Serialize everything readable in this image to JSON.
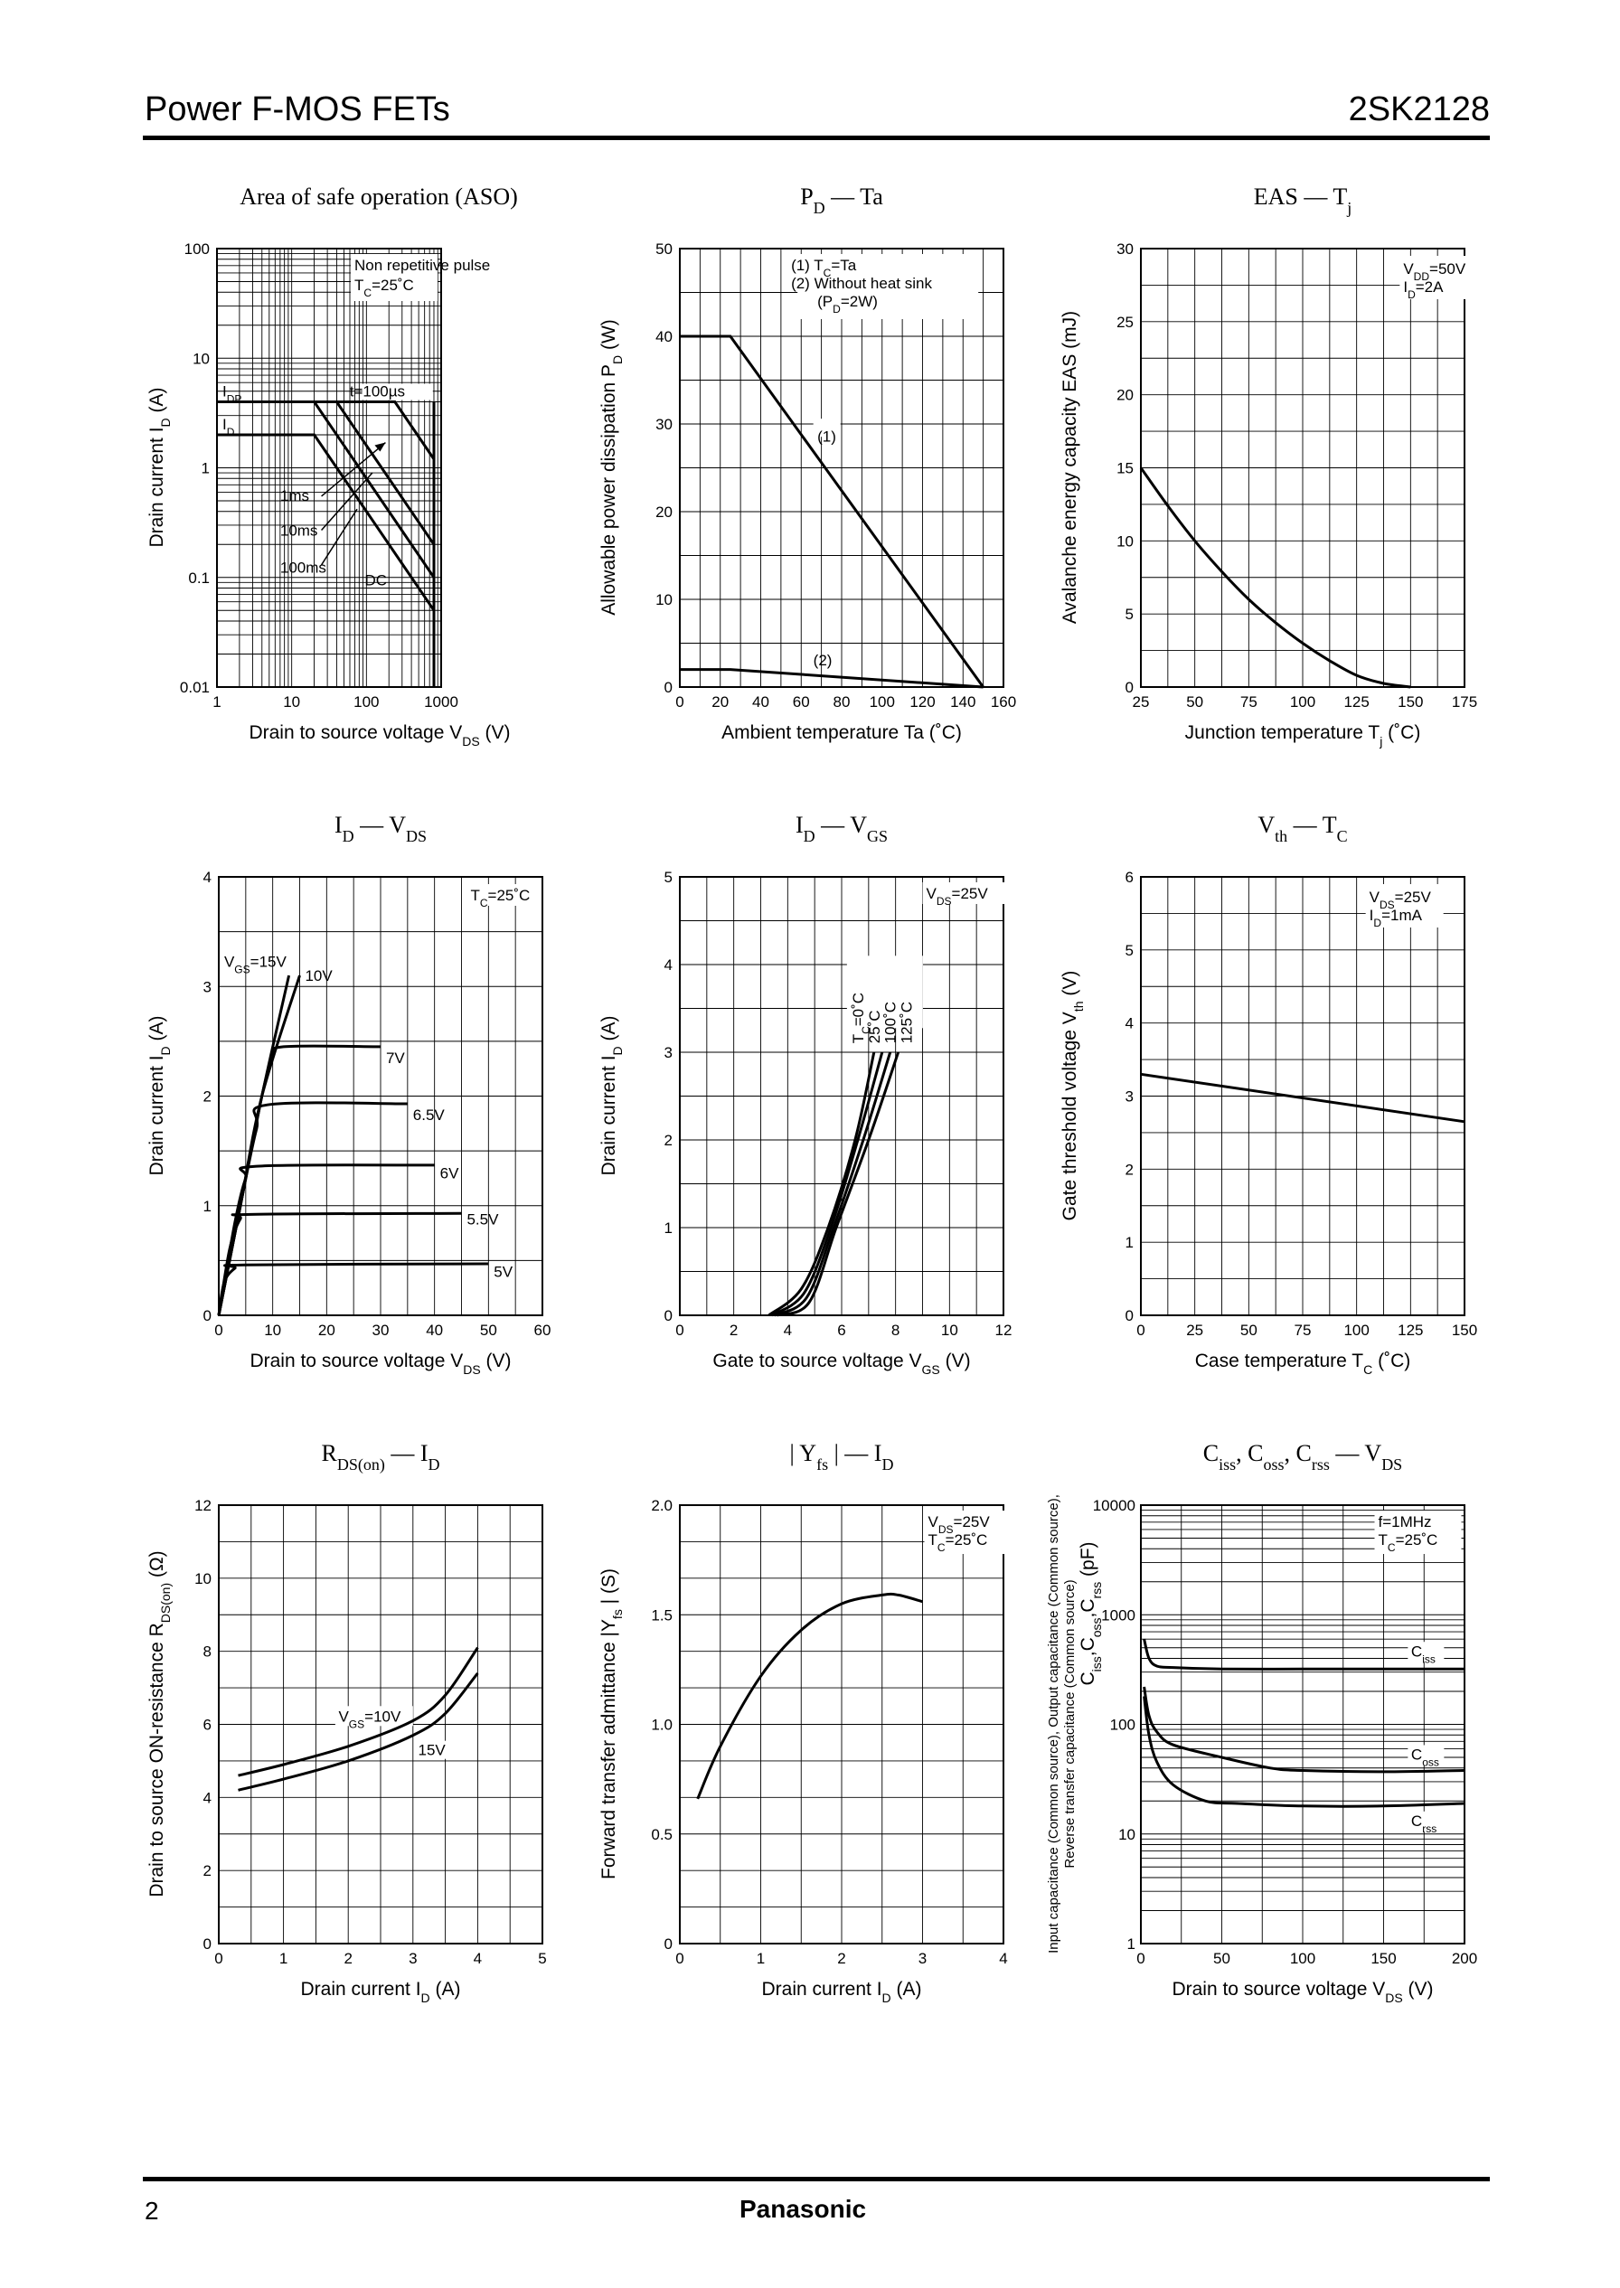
{
  "header": {
    "series": "Power F-MOS FETs",
    "part": "2SK2128"
  },
  "footer": {
    "page": "2",
    "brand": "Panasonic"
  },
  "chart_data": [
    {
      "id": "aso",
      "type": "line",
      "scale": "log-log",
      "title": "Area of safe operation (ASO)",
      "xlabel": "Drain to source voltage   V",
      "xlabel_sub": "DS",
      "xlabel_unit": "(V)",
      "ylabel": "Drain current   I",
      "ylabel_sub": "D",
      "ylabel_unit": "(A)",
      "xlim": [
        1,
        1000
      ],
      "ylim": [
        0.01,
        100
      ],
      "xticks": [
        1,
        10,
        100,
        1000
      ],
      "xtick_labels": [
        "1",
        "10",
        "100",
        "1000"
      ],
      "yticks": [
        0.01,
        0.1,
        1,
        10,
        100
      ],
      "ytick_labels": [
        "0.01",
        "0.1",
        "1",
        "10",
        "100"
      ],
      "notes": [
        "Non repetitive pulse",
        "T",
        "C",
        "=25˚C"
      ],
      "levels": [
        {
          "label": "I",
          "sub": "DP",
          "value": 4
        },
        {
          "label": "I",
          "sub": "D",
          "value": 2
        }
      ],
      "series": [
        {
          "name": "t=100µs",
          "x": [
            1,
            240,
            800
          ],
          "y": [
            4,
            4,
            1.2
          ]
        },
        {
          "name": "1ms",
          "x": [
            1,
            40,
            800
          ],
          "y": [
            4,
            4,
            0.2
          ]
        },
        {
          "name": "10ms",
          "x": [
            1,
            20,
            800
          ],
          "y": [
            4,
            4,
            0.1
          ]
        },
        {
          "name": "100ms",
          "x": [
            1,
            20,
            800
          ],
          "y": [
            2,
            2,
            0.05
          ]
        },
        {
          "name": "DC",
          "x": [
            800,
            800
          ],
          "y": [
            0.01,
            4
          ]
        }
      ],
      "series_labels": [
        "t=100µs",
        "1ms",
        "10ms",
        "100ms",
        "DC"
      ]
    },
    {
      "id": "pd-ta",
      "type": "line",
      "title": "P",
      "title_sub": "D",
      "title_rest": " — Ta",
      "xlabel": "Ambient temperature   Ta   (˚C)",
      "ylabel": "Allowable power dissipation   P",
      "ylabel_sub": "D",
      "ylabel_unit": "(W)",
      "xlim": [
        0,
        160
      ],
      "ylim": [
        0,
        50
      ],
      "xticks": [
        0,
        20,
        40,
        60,
        80,
        100,
        120,
        140,
        160
      ],
      "yticks": [
        0,
        10,
        20,
        30,
        40,
        50
      ],
      "notes": [
        "(1) T",
        "C",
        "=Ta",
        "(2) Without heat sink",
        "(P",
        "D",
        "=2W)"
      ],
      "series": [
        {
          "name": "(1)",
          "x": [
            0,
            25,
            150
          ],
          "y": [
            40,
            40,
            0
          ]
        },
        {
          "name": "(2)",
          "x": [
            0,
            25,
            150
          ],
          "y": [
            2,
            2,
            0
          ]
        }
      ]
    },
    {
      "id": "eas-tj",
      "type": "line",
      "title": "EAS — T",
      "title_sub": "j",
      "xlabel": "Junction temperature   T",
      "xlabel_sub": "j",
      "xlabel_unit": "(˚C)",
      "ylabel": "Avalanche energy capacity   EAS   (mJ)",
      "xlim": [
        25,
        175
      ],
      "ylim": [
        0,
        30
      ],
      "xticks": [
        25,
        50,
        75,
        100,
        125,
        150,
        175
      ],
      "yticks": [
        0,
        5,
        10,
        15,
        20,
        25,
        30
      ],
      "notes": [
        "V",
        "DD",
        "=50V",
        "I",
        "D",
        "=2A"
      ],
      "series": [
        {
          "name": "EAS",
          "x": [
            25,
            37.5,
            50,
            62.5,
            75,
            87.5,
            100,
            112.5,
            125,
            137.5,
            150
          ],
          "y": [
            15,
            12.4,
            10,
            7.9,
            6,
            4.4,
            3,
            1.8,
            0.8,
            0.25,
            0
          ]
        }
      ]
    },
    {
      "id": "id-vds",
      "type": "line",
      "title": "I",
      "title_sub": "D",
      "title_rest": " — V",
      "title_sub2": "DS",
      "xlabel": "Drain to source voltage   V",
      "xlabel_sub": "DS",
      "xlabel_unit": "(V)",
      "ylabel": "Drain current   I",
      "ylabel_sub": "D",
      "ylabel_unit": "(A)",
      "xlim": [
        0,
        60
      ],
      "ylim": [
        0,
        4
      ],
      "xticks": [
        0,
        10,
        20,
        30,
        40,
        50,
        60
      ],
      "yticks": [
        0,
        1,
        2,
        3,
        4
      ],
      "notes": [
        "T",
        "C",
        "=25˚C"
      ],
      "vgs_label": [
        "V",
        "GS",
        "=15V"
      ],
      "series": [
        {
          "name": "15V",
          "x": [
            0,
            4,
            8,
            13
          ],
          "y": [
            0,
            1,
            2,
            3.1
          ]
        },
        {
          "name": "10V",
          "x": [
            0,
            4,
            8,
            15
          ],
          "y": [
            0,
            1,
            2,
            3.1
          ]
        },
        {
          "name": "7V",
          "x": [
            0,
            4,
            8,
            10,
            12,
            30
          ],
          "y": [
            0,
            1,
            2,
            2.35,
            2.45,
            2.45
          ]
        },
        {
          "name": "6.5V",
          "x": [
            0,
            4,
            7,
            9,
            35
          ],
          "y": [
            0,
            1,
            1.7,
            1.92,
            1.93
          ]
        },
        {
          "name": "6V",
          "x": [
            0,
            3,
            5,
            7,
            40
          ],
          "y": [
            0,
            0.85,
            1.25,
            1.36,
            1.37
          ]
        },
        {
          "name": "5.5V",
          "x": [
            0,
            2,
            4,
            6,
            45
          ],
          "y": [
            0,
            0.6,
            0.88,
            0.92,
            0.93
          ]
        },
        {
          "name": "5V",
          "x": [
            0,
            1,
            3,
            5,
            50
          ],
          "y": [
            0,
            0.3,
            0.43,
            0.46,
            0.47
          ]
        }
      ],
      "series_labels": [
        "10V",
        "7V",
        "6.5V",
        "6V",
        "5.5V",
        "5V"
      ]
    },
    {
      "id": "id-vgs",
      "type": "line",
      "title": "I",
      "title_sub": "D",
      "title_rest": " — V",
      "title_sub2": "GS",
      "xlabel": "Gate to source voltage   V",
      "xlabel_sub": "GS",
      "xlabel_unit": "(V)",
      "ylabel": "Drain current   I",
      "ylabel_sub": "D",
      "ylabel_unit": "(A)",
      "xlim": [
        0,
        12
      ],
      "ylim": [
        0,
        5
      ],
      "xticks": [
        0,
        2,
        4,
        6,
        8,
        10,
        12
      ],
      "yticks": [
        0,
        1,
        2,
        3,
        4,
        5
      ],
      "notes": [
        "V",
        "DS",
        "=25V"
      ],
      "tc_labels": [
        "T",
        "C",
        "=0˚C",
        "25˚C",
        "100˚C",
        "125˚C"
      ],
      "series": [
        {
          "name": "0˚C",
          "x": [
            3.3,
            4.5,
            5.5,
            6.5,
            7.2
          ],
          "y": [
            0,
            0.3,
            1.0,
            2.0,
            3.0
          ]
        },
        {
          "name": "25˚C",
          "x": [
            3.4,
            4.6,
            5.6,
            6.6,
            7.5
          ],
          "y": [
            0,
            0.25,
            1.0,
            2.0,
            3.0
          ]
        },
        {
          "name": "100˚C",
          "x": [
            3.5,
            4.7,
            5.7,
            6.8,
            7.8
          ],
          "y": [
            0,
            0.2,
            1.0,
            2.0,
            3.0
          ]
        },
        {
          "name": "125˚C",
          "x": [
            3.6,
            4.8,
            5.8,
            7.0,
            8.1
          ],
          "y": [
            0,
            0.15,
            1.0,
            2.0,
            3.0
          ]
        }
      ]
    },
    {
      "id": "vth-tc",
      "type": "line",
      "title": "V",
      "title_sub": "th",
      "title_rest": " — T",
      "title_sub2": "C",
      "xlabel": "Case temperature   T",
      "xlabel_sub": "C",
      "xlabel_unit": "(˚C)",
      "ylabel": "Gate threshold voltage   V",
      "ylabel_sub": "th",
      "ylabel_unit": "(V)",
      "xlim": [
        0,
        150
      ],
      "ylim": [
        0,
        6
      ],
      "xticks": [
        0,
        25,
        50,
        75,
        100,
        125,
        150
      ],
      "yticks": [
        0,
        1,
        2,
        3,
        4,
        5,
        6
      ],
      "notes": [
        "V",
        "DS",
        "=25V",
        "I",
        "D",
        "=1mA"
      ],
      "series": [
        {
          "name": "Vth",
          "x": [
            0,
            150
          ],
          "y": [
            3.3,
            2.65
          ]
        }
      ]
    },
    {
      "id": "rds-id",
      "type": "line",
      "title": "R",
      "title_sub": "DS(on)",
      "title_rest": " — I",
      "title_sub2": "D",
      "xlabel": "Drain current   I",
      "xlabel_sub": "D",
      "xlabel_unit": "(A)",
      "ylabel": "Drain to source ON-resistance   R",
      "ylabel_sub": "DS(on)",
      "ylabel_unit": "(Ω)",
      "xlim": [
        0,
        5
      ],
      "ylim": [
        0,
        12
      ],
      "xticks": [
        0,
        1,
        2,
        3,
        4,
        5
      ],
      "yticks": [
        0,
        2,
        4,
        6,
        8,
        10,
        12
      ],
      "vgs_label": [
        "V",
        "GS",
        "=10V"
      ],
      "series": [
        {
          "name": "10V",
          "x": [
            0.3,
            1,
            2,
            3,
            3.5,
            4
          ],
          "y": [
            4.6,
            4.9,
            5.4,
            6.1,
            6.8,
            8.1
          ]
        },
        {
          "name": "15V",
          "x": [
            0.3,
            1,
            2,
            3,
            3.5,
            4
          ],
          "y": [
            4.2,
            4.5,
            5.0,
            5.7,
            6.3,
            7.4
          ]
        }
      ],
      "series_labels": [
        "15V"
      ]
    },
    {
      "id": "yfs-id",
      "type": "line",
      "title": "| Y",
      "title_sub": "fs",
      "title_rest": " | — I",
      "title_sub2": "D",
      "xlabel": "Drain current   I",
      "xlabel_sub": "D",
      "xlabel_unit": "(A)",
      "ylabel": "Forward transfer admittance   |Y",
      "ylabel_sub": "fs",
      "ylabel_unit": "|   (S)",
      "xlim": [
        0,
        4
      ],
      "ylim": [
        0,
        2.0
      ],
      "xticks": [
        0,
        1,
        2,
        3,
        4
      ],
      "yticks": [
        0,
        0.5,
        1.0,
        1.5,
        2.0
      ],
      "ytick_labels": [
        "0",
        "0.5",
        "1.0",
        "1.5",
        "2.0"
      ],
      "notes": [
        "V",
        "DS",
        "=25V",
        "T",
        "C",
        "=25˚C"
      ],
      "series": [
        {
          "name": "Yfs",
          "x": [
            0.22,
            0.5,
            1.0,
            1.5,
            2.0,
            2.5,
            2.7,
            3.0
          ],
          "y": [
            0.66,
            0.9,
            1.22,
            1.43,
            1.55,
            1.59,
            1.59,
            1.56
          ]
        }
      ]
    },
    {
      "id": "cap-vds",
      "type": "line",
      "scale": "log-y",
      "title": "C",
      "title_sub": "iss",
      "title_rest": ", C",
      "title_sub2": "oss",
      "title_rest2": ", C",
      "title_sub3": "rss",
      "title_rest3": " — V",
      "title_sub4": "DS",
      "xlabel": "Drain to source voltage   V",
      "xlabel_sub": "DS",
      "xlabel_unit": "(V)",
      "ylabel": "Input capacitance (Common source), Output capacitance (Common source),",
      "ylabel2": "Reverse transfer capacitance (Common source)",
      "ylabel3": "C",
      "ylabel3_sub": "iss",
      "ylabel3_b": ",C",
      "ylabel3_sub2": "oss",
      "ylabel3_c": ",C",
      "ylabel3_sub3": "rss",
      "ylabel3_unit": "(pF)",
      "xlim": [
        0,
        200
      ],
      "ylim": [
        1,
        10000
      ],
      "xticks": [
        0,
        50,
        100,
        150,
        200
      ],
      "yticks": [
        1,
        10,
        100,
        1000,
        10000
      ],
      "ytick_labels": [
        "1",
        "10",
        "100",
        "1000",
        "10000"
      ],
      "notes": [
        "f=1MHz",
        "T",
        "C",
        "=25˚C"
      ],
      "series": [
        {
          "name": "C",
          "sub": "iss",
          "x": [
            2,
            5,
            10,
            20,
            50,
            100,
            150,
            200
          ],
          "y": [
            600,
            400,
            340,
            330,
            320,
            320,
            320,
            320
          ]
        },
        {
          "name": "C",
          "sub": "oss",
          "x": [
            2,
            5,
            10,
            20,
            50,
            80,
            100,
            150,
            200
          ],
          "y": [
            220,
            120,
            85,
            65,
            50,
            40,
            38,
            37,
            38
          ]
        },
        {
          "name": "C",
          "sub": "rss",
          "x": [
            2,
            5,
            10,
            20,
            40,
            60,
            100,
            150,
            200
          ],
          "y": [
            180,
            80,
            45,
            28,
            20,
            19,
            18,
            18,
            19
          ]
        }
      ]
    }
  ]
}
